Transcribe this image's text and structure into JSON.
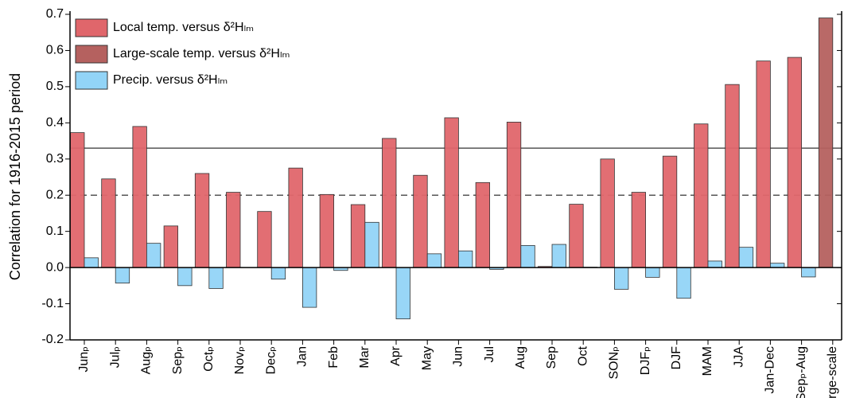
{
  "chart_data": {
    "type": "bar",
    "y_label": "Correlation for 1916-2015 period",
    "categories": [
      "Junₚ",
      "Julₚ",
      "Augₚ",
      "Sepₚ",
      "Octₚ",
      "Novₚ",
      "Decₚ",
      "Jan",
      "Feb",
      "Mar",
      "Apr",
      "May",
      "Jun",
      "Jul",
      "Aug",
      "Sep",
      "Oct",
      "SONₚ",
      "DJFₚ",
      "DJF",
      "MAM",
      "JJA",
      "Jan-Dec",
      "Sepₚ-Aug",
      "Large-scale"
    ],
    "series": [
      {
        "name": "Local temp. versus δ²Hₗₘ",
        "color": "#e0666b",
        "values": [
          0.373,
          0.245,
          0.39,
          0.115,
          0.26,
          0.208,
          0.155,
          0.275,
          0.202,
          0.174,
          0.357,
          0.255,
          0.414,
          0.235,
          0.402,
          0.003,
          0.175,
          0.3,
          0.208,
          0.308,
          0.397,
          0.506,
          0.571,
          0.581,
          null
        ]
      },
      {
        "name": "Large-scale temp. versus δ²Hₗₘ",
        "color": "#b5615f",
        "values": [
          null,
          null,
          null,
          null,
          null,
          null,
          null,
          null,
          null,
          null,
          null,
          null,
          null,
          null,
          null,
          null,
          null,
          null,
          null,
          null,
          null,
          null,
          null,
          null,
          0.69
        ]
      },
      {
        "name": "Precip. versus δ²Hₗₘ",
        "color": "#92d4f7",
        "values": [
          0.027,
          -0.043,
          0.067,
          -0.05,
          -0.058,
          null,
          -0.032,
          -0.11,
          -0.008,
          0.125,
          -0.142,
          0.038,
          0.046,
          -0.005,
          0.061,
          0.064,
          0.001,
          -0.06,
          -0.027,
          -0.085,
          0.018,
          0.056,
          0.012,
          -0.026,
          null
        ]
      }
    ],
    "ylim": [
      -0.2,
      0.7
    ],
    "yticks": [
      -0.2,
      -0.1,
      {
        "value": 0,
        "label": "0.0"
      },
      0.1,
      0.2,
      0.3,
      0.4,
      0.5,
      0.6,
      0.7
    ],
    "reference_lines": [
      {
        "value": 0.33,
        "style": "solid"
      },
      {
        "value": 0.2,
        "style": "dashed"
      }
    ],
    "legend": "top-left"
  }
}
